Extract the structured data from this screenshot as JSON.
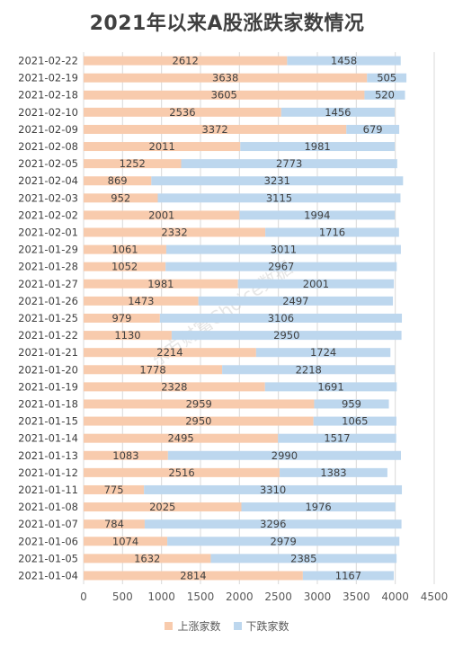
{
  "chart_data": {
    "type": "bar",
    "orientation": "horizontal",
    "stacked": true,
    "title": "2021年以来A股涨跌家数情况",
    "categories": [
      "2021-02-22",
      "2021-02-19",
      "2021-02-18",
      "2021-02-10",
      "2021-02-09",
      "2021-02-08",
      "2021-02-05",
      "2021-02-04",
      "2021-02-03",
      "2021-02-02",
      "2021-02-01",
      "2021-01-29",
      "2021-01-28",
      "2021-01-27",
      "2021-01-26",
      "2021-01-25",
      "2021-01-22",
      "2021-01-21",
      "2021-01-20",
      "2021-01-19",
      "2021-01-18",
      "2021-01-15",
      "2021-01-14",
      "2021-01-13",
      "2021-01-12",
      "2021-01-11",
      "2021-01-08",
      "2021-01-07",
      "2021-01-06",
      "2021-01-05",
      "2021-01-04"
    ],
    "series": [
      {
        "name": "上涨家数",
        "color": "#f8cbad",
        "values": [
          2612,
          3638,
          3605,
          2536,
          3372,
          2011,
          1252,
          869,
          952,
          2001,
          2332,
          1061,
          1052,
          1981,
          1473,
          979,
          1130,
          2214,
          1778,
          2328,
          2959,
          2950,
          2495,
          1083,
          2516,
          775,
          2025,
          784,
          1074,
          1632,
          2814
        ]
      },
      {
        "name": "下跌家数",
        "color": "#bdd7ee",
        "values": [
          1458,
          505,
          520,
          1456,
          679,
          1981,
          2773,
          3231,
          3115,
          1994,
          1716,
          3011,
          2967,
          2001,
          2497,
          3106,
          2950,
          1724,
          2218,
          1691,
          959,
          1065,
          1517,
          2990,
          1383,
          3310,
          1976,
          3296,
          2979,
          2385,
          1167
        ]
      }
    ],
    "x_ticks": [
      "0",
      "500",
      "1000",
      "1500",
      "2000",
      "2500",
      "3000",
      "3500",
      "4000",
      "4500"
    ],
    "xlim": [
      0,
      4500
    ],
    "grid": true,
    "legend_position": "bottom",
    "watermark": "东方财富Choice数据"
  }
}
